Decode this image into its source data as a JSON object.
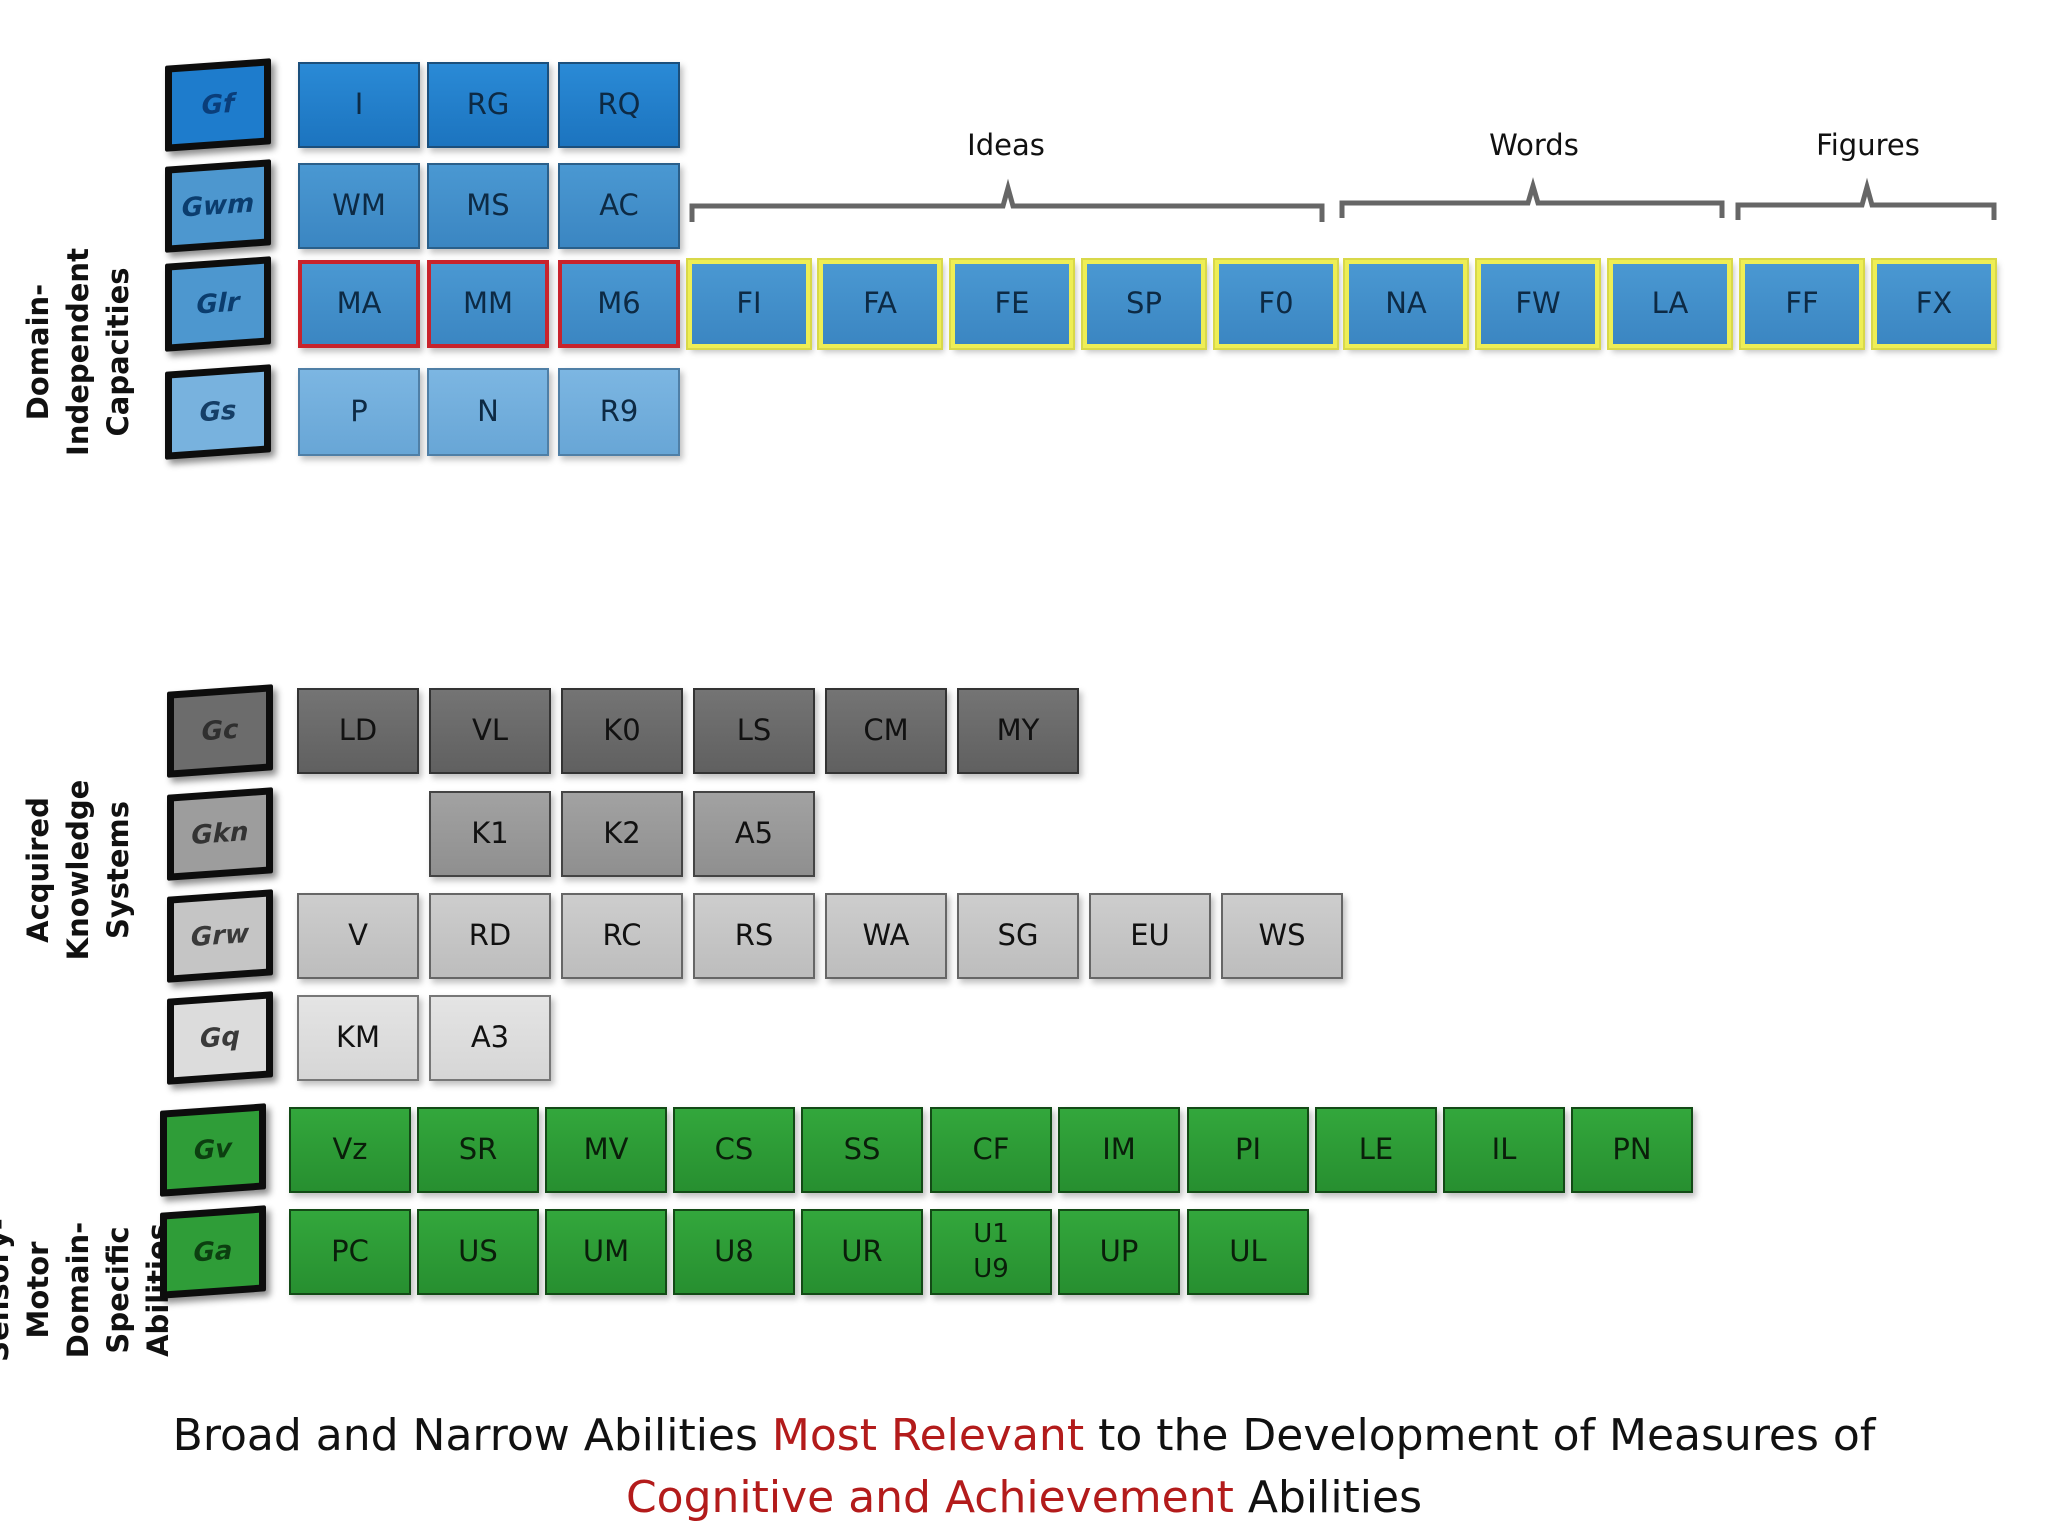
{
  "colors": {
    "blue_dark": "#1f7fd0",
    "blue_mid": "#3d8fd0",
    "blue_light": "#6fb1e0",
    "gray_dark": "#6b6b6b",
    "gray_mid": "#9a9a9a",
    "gray_light": "#c7c7c7",
    "gray_lightest": "#dedede",
    "green": "#2b9a34",
    "highlight_red": "#c8232c",
    "highlight_yellow": "#eeee55",
    "caption_red": "#b31b1b"
  },
  "sections": [
    {
      "label": "Domain-Independent\nCapacities"
    },
    {
      "label": "Acquired Knowledge\nSystems"
    },
    {
      "label": "Sensory-Motor Domain-\nSpecific Abilities"
    }
  ],
  "groups": [
    {
      "label": "Ideas"
    },
    {
      "label": "Words"
    },
    {
      "label": "Figures"
    }
  ],
  "rows": [
    {
      "broad": "Gf",
      "tone": "blue1",
      "narrow": [
        {
          "label": "I"
        },
        {
          "label": "RG"
        },
        {
          "label": "RQ"
        }
      ]
    },
    {
      "broad": "Gwm",
      "tone": "blue2",
      "narrow": [
        {
          "label": "WM"
        },
        {
          "label": "MS"
        },
        {
          "label": "AC"
        }
      ]
    },
    {
      "broad": "Glr",
      "tone": "blue2",
      "narrow": [
        {
          "label": "MA",
          "highlight": "red"
        },
        {
          "label": "MM",
          "highlight": "red"
        },
        {
          "label": "M6",
          "highlight": "red"
        },
        {
          "label": "FI",
          "highlight": "yellow"
        },
        {
          "label": "FA",
          "highlight": "yellow"
        },
        {
          "label": "FE",
          "highlight": "yellow"
        },
        {
          "label": "SP",
          "highlight": "yellow"
        },
        {
          "label": "F0",
          "highlight": "yellow"
        },
        {
          "label": "NA",
          "highlight": "yellow"
        },
        {
          "label": "FW",
          "highlight": "yellow"
        },
        {
          "label": "LA",
          "highlight": "yellow"
        },
        {
          "label": "FF",
          "highlight": "yellow"
        },
        {
          "label": "FX",
          "highlight": "yellow"
        }
      ]
    },
    {
      "broad": "Gs",
      "tone": "blue3",
      "narrow": [
        {
          "label": "P"
        },
        {
          "label": "N"
        },
        {
          "label": "R9"
        }
      ]
    },
    {
      "broad": "Gc",
      "tone": "gray1",
      "narrow": [
        {
          "label": "LD"
        },
        {
          "label": "VL"
        },
        {
          "label": "K0"
        },
        {
          "label": "LS"
        },
        {
          "label": "CM"
        },
        {
          "label": "MY"
        }
      ]
    },
    {
      "broad": "Gkn",
      "tone": "gray2",
      "narrow": [
        {
          "label": "K1"
        },
        {
          "label": "K2"
        },
        {
          "label": "A5"
        }
      ]
    },
    {
      "broad": "Grw",
      "tone": "gray3",
      "narrow": [
        {
          "label": "V"
        },
        {
          "label": "RD"
        },
        {
          "label": "RC"
        },
        {
          "label": "RS"
        },
        {
          "label": "WA"
        },
        {
          "label": "SG"
        },
        {
          "label": "EU"
        },
        {
          "label": "WS"
        }
      ]
    },
    {
      "broad": "Gq",
      "tone": "gray4",
      "narrow": [
        {
          "label": "KM"
        },
        {
          "label": "A3"
        }
      ]
    },
    {
      "broad": "Gv",
      "tone": "green",
      "narrow": [
        {
          "label": "Vz"
        },
        {
          "label": "SR"
        },
        {
          "label": "MV"
        },
        {
          "label": "CS"
        },
        {
          "label": "SS"
        },
        {
          "label": "CF"
        },
        {
          "label": "IM"
        },
        {
          "label": "PI"
        },
        {
          "label": "LE"
        },
        {
          "label": "IL"
        },
        {
          "label": "PN"
        }
      ]
    },
    {
      "broad": "Ga",
      "tone": "green",
      "narrow": [
        {
          "label": "PC"
        },
        {
          "label": "US"
        },
        {
          "label": "UM"
        },
        {
          "label": "U8"
        },
        {
          "label": "UR"
        },
        {
          "label": "U1\nU9"
        },
        {
          "label": "UP"
        },
        {
          "label": "UL"
        }
      ]
    }
  ],
  "caption": {
    "part1": "Broad and Narrow Abilities ",
    "highlight1": "Most Relevant",
    "part2": " to the Development of Measures of",
    "highlight2": "Cognitive and Achievement",
    "part3": " Abilities"
  }
}
